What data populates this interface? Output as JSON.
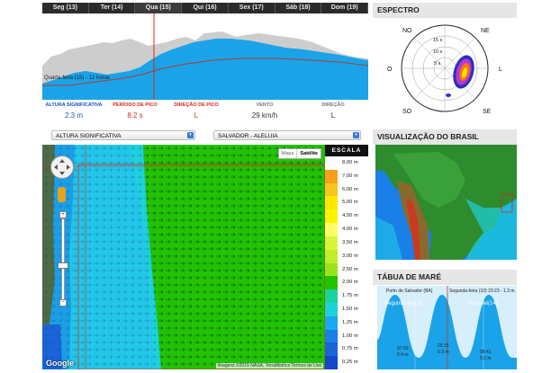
{
  "days": [
    "Seg (13)",
    "Ter (14)",
    "Qua (15)",
    "Qui (16)",
    "Sex (17)",
    "Sáb (18)",
    "Dom (19)"
  ],
  "chart": {
    "annotation": "Quarta-feira (15) - 12 horas",
    "marker_color": "#c0392b",
    "area_color": "#1aa3e8",
    "gray_color": "#c8c8c8"
  },
  "stats": [
    {
      "label": "ALTURA SIGNIFICATIVA",
      "value": "2.3 m",
      "label_color": "#1a4fc4",
      "value_color": "#1a4fc4"
    },
    {
      "label": "PERÍODO DE PICO",
      "value": "8.2 s",
      "label_color": "#d6281f",
      "value_color": "#d6281f"
    },
    {
      "label": "DIREÇÃO DE PICO",
      "value": "L",
      "label_color": "#d6281f",
      "value_color": "#d6281f"
    },
    {
      "label": "VENTO",
      "value": "29 km/h",
      "label_color": "#777777",
      "value_color": "#333333"
    },
    {
      "label": "DIREÇÃO",
      "value": "L",
      "label_color": "#777777",
      "value_color": "#333333"
    }
  ],
  "selects": {
    "variable": "ALTURA SIGNIFICATIVA",
    "location": "SALVADOR - ALELUIA"
  },
  "map": {
    "type_buttons": [
      "Mapa",
      "Satélite"
    ],
    "active_type": "Satélite",
    "google": "Google",
    "credits": "Imagens ©2015 NASA, TerraMetrics  Termos de Uso"
  },
  "scale": {
    "title": "ESCALA",
    "levels": [
      {
        "label": "8,00 m",
        "color": "#ffffff"
      },
      {
        "label": "7,00 m",
        "color": "#f7a11a"
      },
      {
        "label": "6,00 m",
        "color": "#f7c51d"
      },
      {
        "label": "5,00 m",
        "color": "#ffe800"
      },
      {
        "label": "4,50 m",
        "color": "#fff300"
      },
      {
        "label": "4,00 m",
        "color": "#ffff66"
      },
      {
        "label": "3,50 m",
        "color": "#d8f53a"
      },
      {
        "label": "3,00 m",
        "color": "#c0ee2a"
      },
      {
        "label": "2,50 m",
        "color": "#9be31e"
      },
      {
        "label": "2,00 m",
        "color": "#22c200"
      },
      {
        "label": "1,75 m",
        "color": "#18d39d"
      },
      {
        "label": "1,50 m",
        "color": "#1ed2dc"
      },
      {
        "label": "1,25 m",
        "color": "#1ba8f0"
      },
      {
        "label": "1,00 m",
        "color": "#1a7fe6"
      },
      {
        "label": "0,75 m",
        "color": "#1a63d8"
      },
      {
        "label": "0,25 m",
        "color": "#1448c6"
      }
    ]
  },
  "spectrum": {
    "title": "ESPECTRO",
    "directions": {
      "n": "NO",
      "ne": "NE",
      "e": "L",
      "se": "SE",
      "s": "SO",
      "w": "O"
    },
    "rings": [
      "15 s",
      "10 s",
      "5 s"
    ]
  },
  "brasil": {
    "title": "VISUALIZAÇÃO DO BRASIL"
  },
  "tide": {
    "title": "TÁBUA DE MARÉ",
    "port": "Porto de Salvador (BA)",
    "current": "Segunda-feira (10) 23:23 - 1.3 m",
    "day_a": "Segunda-fe(13)",
    "day_b": "Terça-fei(14)",
    "label1_time": "07:03",
    "label1_value": "0.4 m",
    "label2_time": "20:15",
    "label2_value": "0.3 m",
    "label3_time": "08:41",
    "label3_value": "0.2 m"
  }
}
